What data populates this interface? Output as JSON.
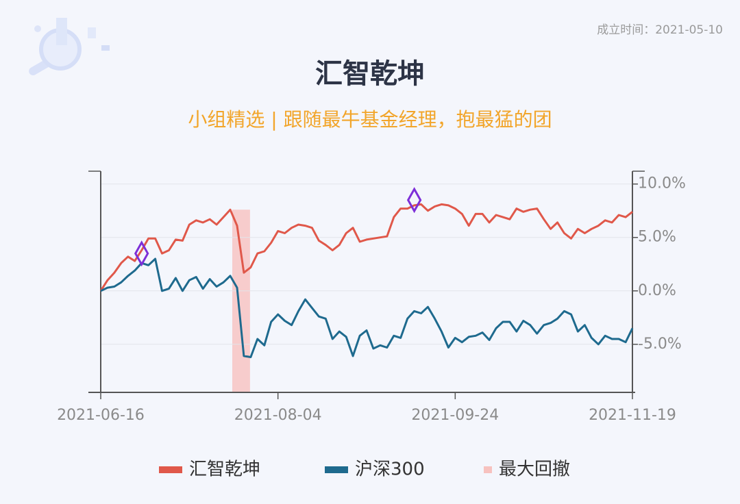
{
  "header": {
    "founded": "成立时间：2021-05-10",
    "title": "汇智乾坤",
    "subtitle": "小组精选 | 跟随最牛基金经理，抱最猛的团"
  },
  "chart_data": {
    "type": "line",
    "categories": [
      "2021-06-16",
      null,
      null,
      null,
      null,
      null,
      null,
      null,
      null,
      null,
      null,
      null,
      null,
      null,
      null,
      null,
      null,
      null,
      null,
      null,
      null,
      null,
      null,
      null,
      null,
      null,
      "2021-08-04",
      null,
      null,
      null,
      null,
      null,
      null,
      null,
      null,
      null,
      null,
      null,
      null,
      null,
      null,
      null,
      null,
      null,
      null,
      null,
      null,
      null,
      null,
      null,
      null,
      null,
      "2021-09-24",
      null,
      null,
      null,
      null,
      null,
      null,
      null,
      null,
      null,
      null,
      null,
      null,
      null,
      null,
      null,
      null,
      null,
      null,
      null,
      null,
      null,
      null,
      null,
      null,
      null,
      "2021-11-19"
    ],
    "series": [
      {
        "name": "汇智乾坤",
        "color": "#e0584a",
        "values": [
          0,
          1.0,
          1.7,
          2.6,
          3.2,
          2.8,
          3.8,
          4.9,
          4.9,
          3.5,
          3.8,
          4.8,
          4.7,
          6.2,
          6.6,
          6.4,
          6.7,
          6.2,
          6.9,
          7.6,
          6.1,
          1.7,
          2.2,
          3.5,
          3.7,
          4.5,
          5.6,
          5.4,
          5.9,
          6.2,
          6.1,
          5.9,
          4.7,
          4.3,
          3.8,
          4.3,
          5.4,
          5.9,
          4.6,
          4.8,
          4.9,
          5.0,
          5.1,
          6.9,
          7.7,
          7.7,
          8.0,
          8.1,
          7.5,
          7.9,
          8.1,
          8.0,
          7.7,
          7.2,
          6.1,
          7.2,
          7.2,
          6.4,
          7.1,
          6.9,
          6.7,
          7.7,
          7.4,
          7.6,
          7.7,
          6.7,
          5.8,
          6.4,
          5.4,
          4.9,
          5.8,
          5.4,
          5.8,
          6.1,
          6.6,
          6.4,
          7.1,
          6.9,
          7.4
        ]
      },
      {
        "name": "沪深300",
        "color": "#1e6a8e",
        "values": [
          0,
          0.3,
          0.4,
          0.8,
          1.4,
          1.9,
          2.6,
          2.4,
          3.0,
          0,
          0.2,
          1.2,
          0,
          1.0,
          1.3,
          0.2,
          1.1,
          0.4,
          0.8,
          1.4,
          0.3,
          -6.1,
          -6.2,
          -4.5,
          -5.1,
          -2.9,
          -2.2,
          -2.8,
          -3.2,
          -1.9,
          -0.8,
          -1.6,
          -2.4,
          -2.6,
          -4.5,
          -3.8,
          -4.3,
          -6.1,
          -4.2,
          -3.7,
          -5.4,
          -5.1,
          -5.3,
          -4.2,
          -4.4,
          -2.6,
          -1.9,
          -2.1,
          -1.5,
          -2.6,
          -3.8,
          -5.3,
          -4.4,
          -4.8,
          -4.3,
          -4.2,
          -3.9,
          -4.6,
          -3.5,
          -2.9,
          -2.9,
          -3.8,
          -2.8,
          -3.2,
          -4.0,
          -3.2,
          -3.0,
          -2.6,
          -1.9,
          -2.2,
          -3.8,
          -3.2,
          -4.4,
          -5.0,
          -4.2,
          -4.5,
          -4.5,
          -4.8,
          -3.5
        ]
      }
    ],
    "drawdown": {
      "name": "最大回撤",
      "color": "#f7c2bf"
    },
    "markers": {
      "color": "#7d2fd8",
      "x": [
        6,
        46
      ],
      "values": [
        3.5,
        8.5
      ]
    },
    "ylim": [
      -9.5,
      11.2
    ],
    "yticks": [
      {
        "value": -5,
        "label": "-5.0%"
      },
      {
        "value": 0,
        "label": "0.0%"
      },
      {
        "value": 5,
        "label": "5.0%"
      },
      {
        "value": 10,
        "label": "10.0%"
      }
    ],
    "grid": true
  }
}
